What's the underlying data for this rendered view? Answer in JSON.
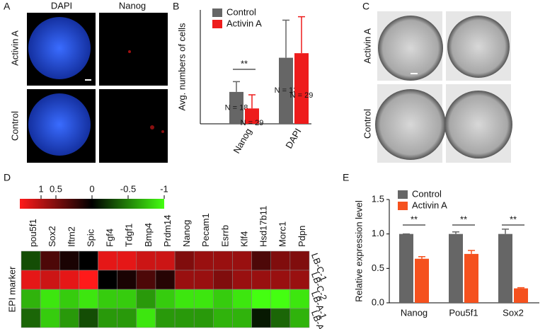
{
  "panels": {
    "a": {
      "label": "A",
      "columns": [
        "DAPI",
        "Nanog"
      ],
      "rows": [
        "Activin A",
        "Control"
      ]
    },
    "c": {
      "label": "C",
      "rows": [
        "Activin A",
        "Control"
      ]
    }
  },
  "chart_data": [
    {
      "type": "bar",
      "panel": "B",
      "ylabel": "Avg. numbers of cells",
      "categories": [
        "Nanog",
        "DAPI"
      ],
      "ylim": [
        0,
        100
      ],
      "series": [
        {
          "name": "Control",
          "color": "#666666",
          "values": [
            28,
            58
          ],
          "errors": [
            9,
            33
          ],
          "n_labels": [
            "N = 18",
            "N = 13"
          ]
        },
        {
          "name": "Activin A",
          "color": "#ee1c1c",
          "values": [
            13.5,
            62
          ],
          "errors": [
            12,
            32
          ],
          "n_labels": [
            "N = 29",
            "N = 29"
          ]
        }
      ],
      "significance": [
        "**",
        null
      ]
    },
    {
      "type": "heatmap",
      "panel": "D",
      "ylabel": "EPI marker",
      "x": [
        "pou5f1",
        "Sox2",
        "Iftm2",
        "Spic",
        "Fgf4",
        "Tdgf1",
        "Bmp4",
        "Prdm14",
        "Nanog",
        "Pecam1",
        "Esrrb",
        "Klf4",
        "Hsd17b11",
        "Morc1",
        "Pdpn"
      ],
      "y": [
        "LB-C-1",
        "LB-C-2",
        "LB-A-1",
        "LB-A-2"
      ],
      "values": [
        [
          -0.3,
          0.3,
          0.1,
          0,
          0.9,
          0.9,
          0.8,
          0.8,
          0.5,
          0.6,
          0.6,
          0.6,
          0.3,
          0.5,
          0.5
        ],
        [
          0.9,
          0.8,
          0.9,
          1,
          0,
          0.1,
          0.3,
          0.15,
          0.6,
          0.6,
          0.5,
          0.6,
          0.6,
          0.6,
          0.6
        ],
        [
          -0.7,
          -0.9,
          -0.8,
          -0.9,
          -0.8,
          -0.8,
          -0.6,
          -0.8,
          -0.9,
          -0.9,
          -0.8,
          -0.9,
          -1,
          -1,
          -0.9
        ],
        [
          -0.4,
          -0.8,
          -0.6,
          -0.3,
          -0.6,
          -0.6,
          -0.9,
          -0.6,
          -0.6,
          -0.6,
          -0.7,
          -0.7,
          -0.1,
          -0.4,
          -0.7
        ]
      ],
      "colors": [
        "#ff1a1a",
        "#000000",
        "#44ff11"
      ],
      "colorbar_ticks": [
        1,
        0.5,
        0,
        -0.5,
        -1
      ],
      "clim": [
        1,
        -1
      ]
    },
    {
      "type": "bar",
      "panel": "E",
      "ylabel": "Relative expression level",
      "categories": [
        "Nanog",
        "Pou5f1",
        "Sox2"
      ],
      "ylim": [
        0,
        1.5
      ],
      "yticks": [
        {
          "value": 0,
          "label": "0.0"
        },
        {
          "value": 0.5,
          "label": "0.5"
        },
        {
          "value": 1,
          "label": "1.0"
        },
        {
          "value": 1.5,
          "label": "1.5"
        }
      ],
      "series": [
        {
          "name": "Control",
          "color": "#666666",
          "values": [
            1,
            1,
            1
          ],
          "errors": [
            0,
            0.03,
            0.07
          ]
        },
        {
          "name": "Activin A",
          "color": "#f5511e",
          "values": [
            0.64,
            0.71,
            0.21
          ],
          "errors": [
            0.03,
            0.05,
            0.01
          ]
        }
      ],
      "significance": [
        "**",
        "**",
        "**"
      ]
    }
  ]
}
